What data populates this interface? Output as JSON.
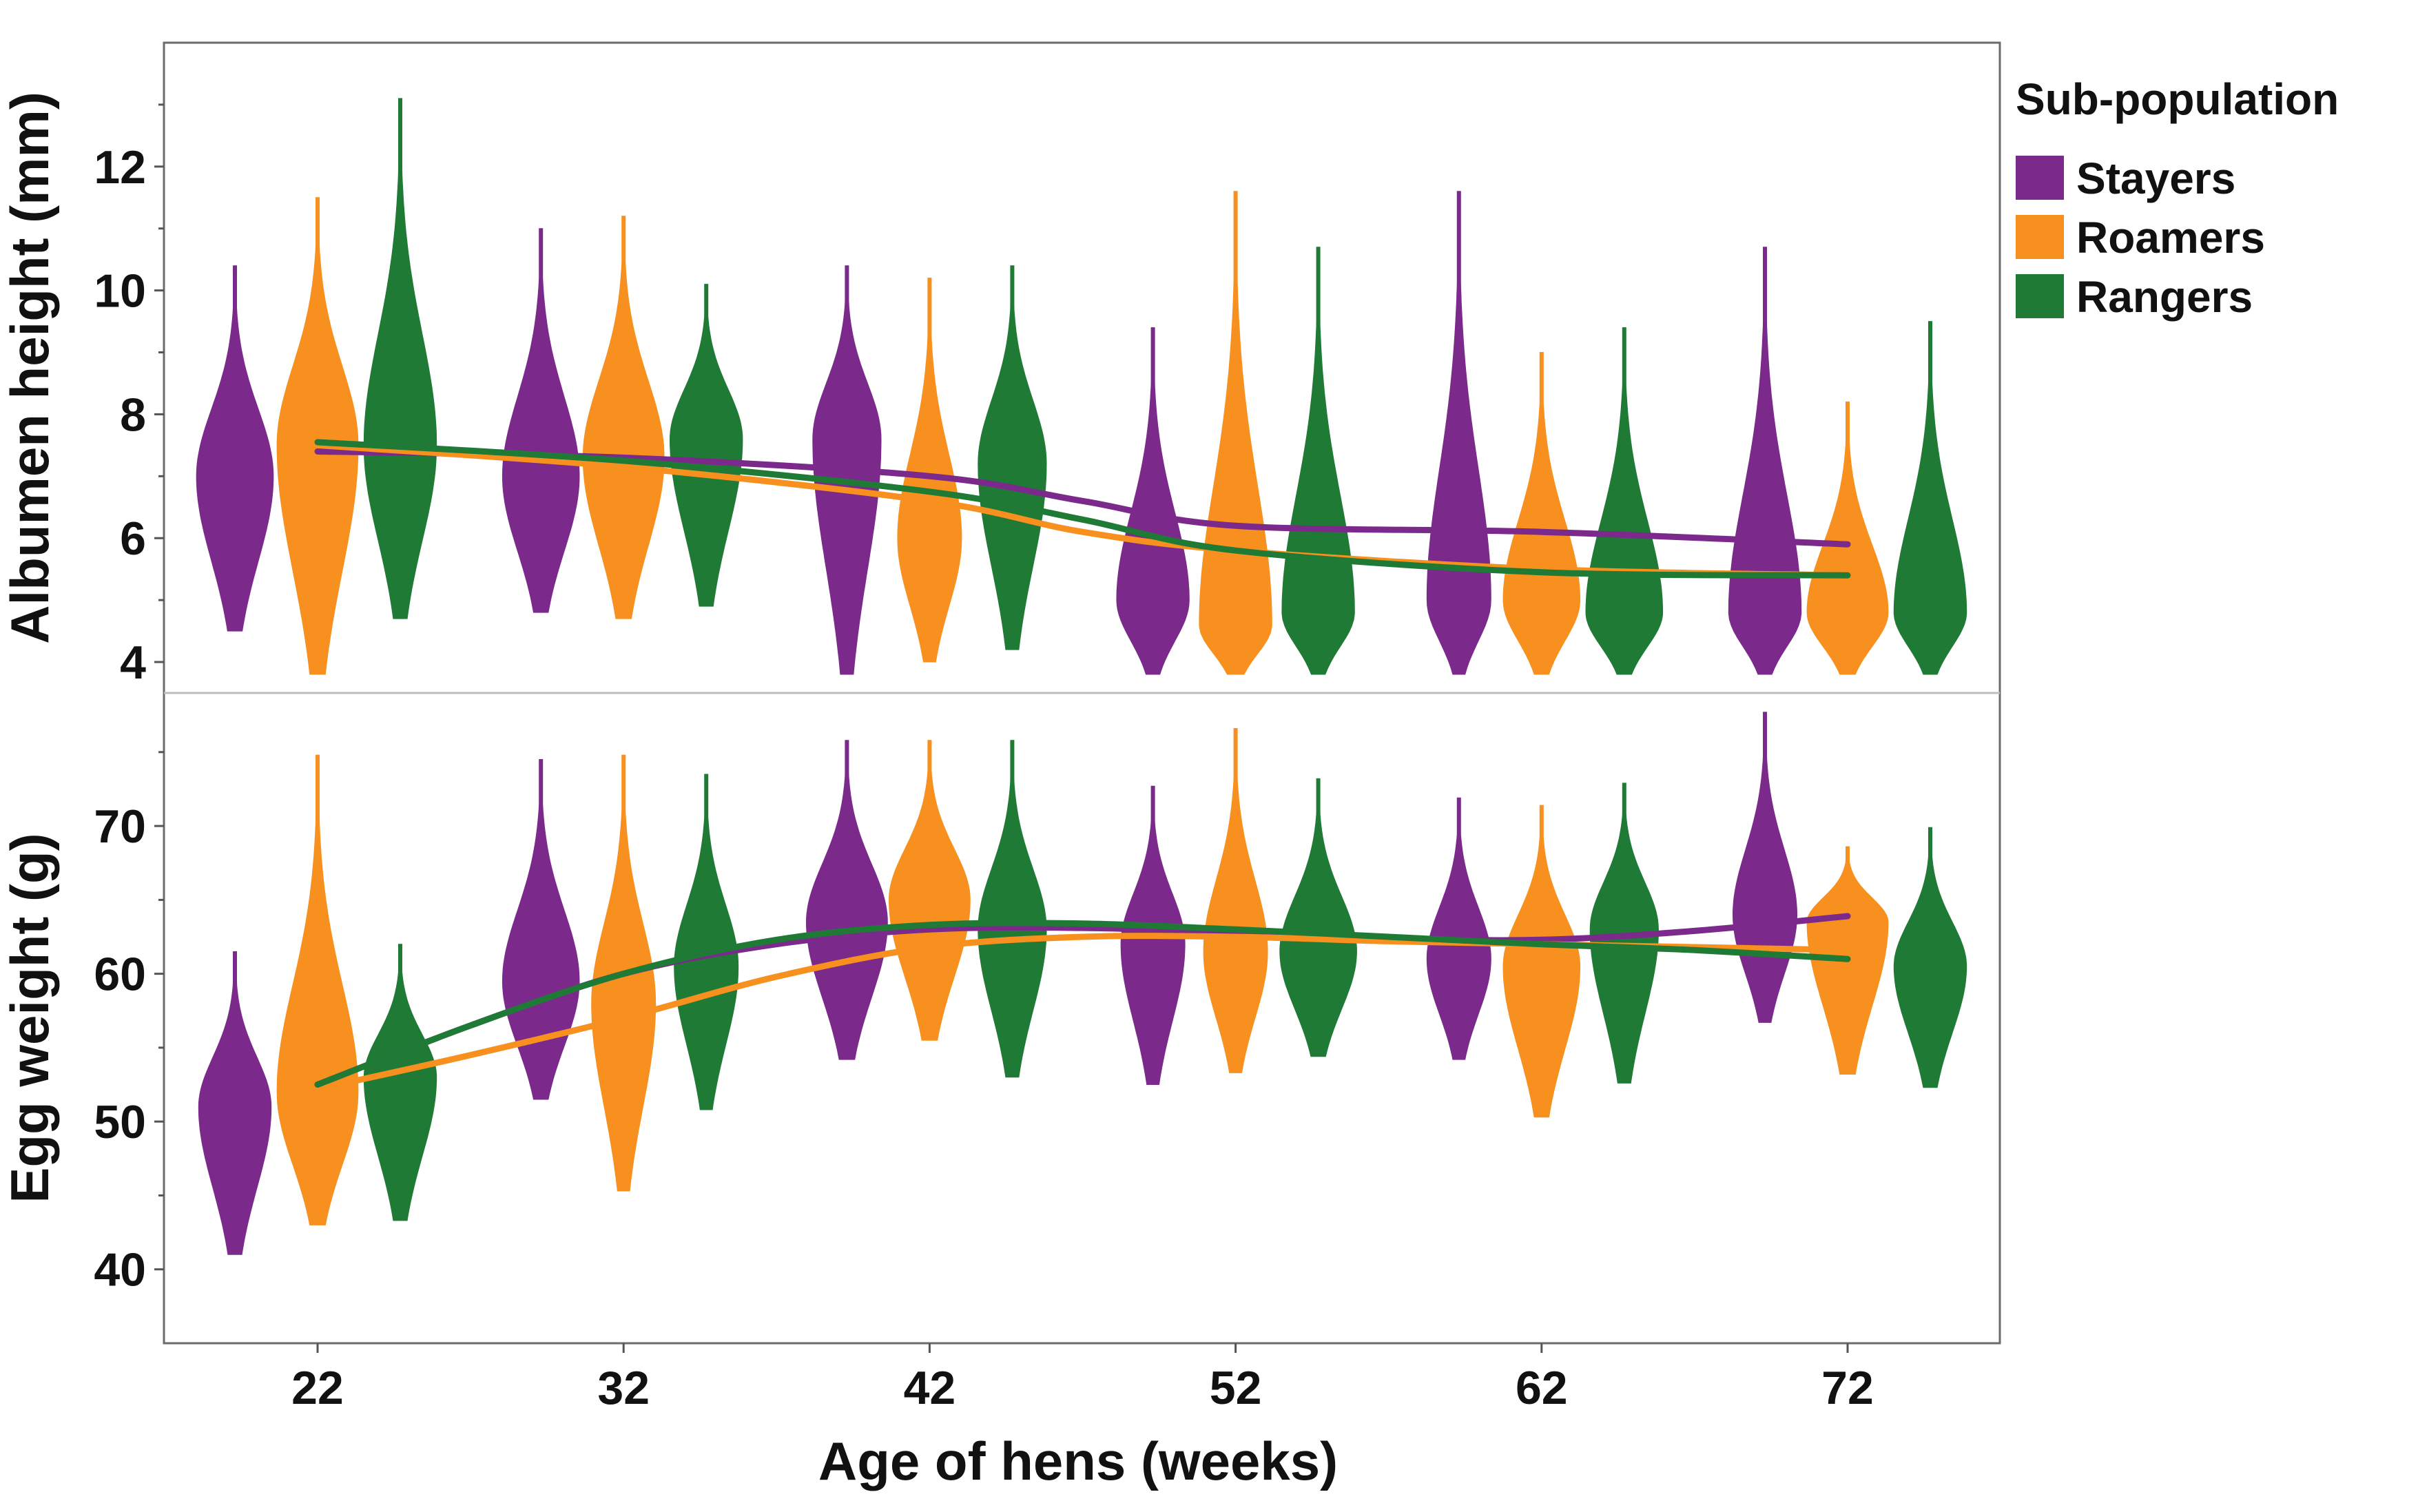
{
  "chart_data": {
    "type": "violin",
    "x": [
      22,
      32,
      42,
      52,
      62,
      72
    ],
    "xlabel": "Age of hens (weeks)",
    "legend_title": "Sub-population",
    "legend_position": "right",
    "series": [
      {
        "name": "Stayers",
        "color": "#7b2a8c"
      },
      {
        "name": "Roamers",
        "color": "#f7901e"
      },
      {
        "name": "Rangers",
        "color": "#1f7a35"
      }
    ],
    "panels": [
      {
        "id": "albumen",
        "ylabel": "Albumen height (mm)",
        "ylim": [
          3.5,
          14.0
        ],
        "yticks": [
          4,
          6,
          8,
          10,
          12
        ],
        "violins": [
          {
            "x": 22,
            "series": "Stayers",
            "min": 4.5,
            "max": 10.4,
            "mode": 7.0,
            "width": 0.9
          },
          {
            "x": 22,
            "series": "Roamers",
            "min": 3.8,
            "max": 11.5,
            "mode": 7.5,
            "width": 0.95
          },
          {
            "x": 22,
            "series": "Rangers",
            "min": 4.7,
            "max": 13.1,
            "mode": 7.5,
            "width": 0.85
          },
          {
            "x": 32,
            "series": "Stayers",
            "min": 4.8,
            "max": 11.0,
            "mode": 7.0,
            "width": 0.9
          },
          {
            "x": 32,
            "series": "Roamers",
            "min": 4.7,
            "max": 11.2,
            "mode": 7.3,
            "width": 0.95
          },
          {
            "x": 32,
            "series": "Rangers",
            "min": 4.9,
            "max": 10.1,
            "mode": 7.6,
            "width": 0.85
          },
          {
            "x": 42,
            "series": "Stayers",
            "min": 3.8,
            "max": 10.4,
            "mode": 7.6,
            "width": 0.8
          },
          {
            "x": 42,
            "series": "Roamers",
            "min": 4.0,
            "max": 10.2,
            "mode": 6.0,
            "width": 0.75
          },
          {
            "x": 42,
            "series": "Rangers",
            "min": 4.2,
            "max": 10.4,
            "mode": 7.2,
            "width": 0.8
          },
          {
            "x": 52,
            "series": "Stayers",
            "min": 3.8,
            "max": 9.4,
            "mode": 5.0,
            "width": 0.85
          },
          {
            "x": 52,
            "series": "Roamers",
            "min": 3.8,
            "max": 11.6,
            "mode": 4.6,
            "width": 0.85
          },
          {
            "x": 52,
            "series": "Rangers",
            "min": 3.8,
            "max": 10.7,
            "mode": 4.8,
            "width": 0.85
          },
          {
            "x": 62,
            "series": "Stayers",
            "min": 3.8,
            "max": 11.6,
            "mode": 5.0,
            "width": 0.75
          },
          {
            "x": 62,
            "series": "Roamers",
            "min": 3.8,
            "max": 9.0,
            "mode": 5.0,
            "width": 0.9
          },
          {
            "x": 62,
            "series": "Rangers",
            "min": 3.8,
            "max": 9.4,
            "mode": 4.8,
            "width": 0.9
          },
          {
            "x": 72,
            "series": "Stayers",
            "min": 3.8,
            "max": 10.7,
            "mode": 4.8,
            "width": 0.85
          },
          {
            "x": 72,
            "series": "Roamers",
            "min": 3.8,
            "max": 8.2,
            "mode": 4.8,
            "width": 0.95
          },
          {
            "x": 72,
            "series": "Rangers",
            "min": 3.8,
            "max": 9.5,
            "mode": 4.8,
            "width": 0.85
          }
        ],
        "trend_lines": [
          {
            "series": "Stayers",
            "x": [
              22,
              32,
              42,
              47,
              52,
              62,
              72
            ],
            "y": [
              7.4,
              7.3,
              7.0,
              6.6,
              6.2,
              6.1,
              5.9
            ]
          },
          {
            "series": "Roamers",
            "x": [
              22,
              32,
              42,
              47,
              52,
              62,
              72
            ],
            "y": [
              7.5,
              7.15,
              6.6,
              6.1,
              5.8,
              5.5,
              5.4
            ]
          },
          {
            "series": "Rangers",
            "x": [
              22,
              32,
              42,
              47,
              52,
              62,
              72
            ],
            "y": [
              7.55,
              7.25,
              6.75,
              6.3,
              5.8,
              5.45,
              5.4
            ]
          }
        ]
      },
      {
        "id": "egg_weight",
        "ylabel": "Egg weight (g)",
        "ylim": [
          35,
          79
        ],
        "yticks": [
          40,
          50,
          60,
          70
        ],
        "violins": [
          {
            "x": 22,
            "series": "Stayers",
            "min": 41.0,
            "max": 61.5,
            "mode": 51.0,
            "width": 0.85
          },
          {
            "x": 22,
            "series": "Roamers",
            "min": 43.0,
            "max": 74.8,
            "mode": 52.0,
            "width": 0.95
          },
          {
            "x": 22,
            "series": "Rangers",
            "min": 43.3,
            "max": 62.0,
            "mode": 53.0,
            "width": 0.85
          },
          {
            "x": 32,
            "series": "Stayers",
            "min": 51.5,
            "max": 74.5,
            "mode": 59.5,
            "width": 0.9
          },
          {
            "x": 32,
            "series": "Roamers",
            "min": 45.3,
            "max": 74.8,
            "mode": 58.0,
            "width": 0.75
          },
          {
            "x": 32,
            "series": "Rangers",
            "min": 50.8,
            "max": 73.5,
            "mode": 60.5,
            "width": 0.75
          },
          {
            "x": 42,
            "series": "Stayers",
            "min": 54.2,
            "max": 75.8,
            "mode": 63.5,
            "width": 0.95
          },
          {
            "x": 42,
            "series": "Roamers",
            "min": 55.5,
            "max": 75.8,
            "mode": 65.0,
            "width": 0.95
          },
          {
            "x": 42,
            "series": "Rangers",
            "min": 53.0,
            "max": 75.8,
            "mode": 63.0,
            "width": 0.8
          },
          {
            "x": 52,
            "series": "Stayers",
            "min": 52.5,
            "max": 72.7,
            "mode": 62.0,
            "width": 0.75
          },
          {
            "x": 52,
            "series": "Roamers",
            "min": 53.3,
            "max": 76.6,
            "mode": 61.5,
            "width": 0.75
          },
          {
            "x": 52,
            "series": "Rangers",
            "min": 54.4,
            "max": 73.2,
            "mode": 61.5,
            "width": 0.9
          },
          {
            "x": 62,
            "series": "Stayers",
            "min": 54.2,
            "max": 71.9,
            "mode": 61.0,
            "width": 0.75
          },
          {
            "x": 62,
            "series": "Roamers",
            "min": 50.3,
            "max": 71.4,
            "mode": 60.5,
            "width": 0.9
          },
          {
            "x": 62,
            "series": "Rangers",
            "min": 52.6,
            "max": 72.9,
            "mode": 63.0,
            "width": 0.8
          },
          {
            "x": 72,
            "series": "Stayers",
            "min": 56.7,
            "max": 77.7,
            "mode": 64.0,
            "width": 0.75
          },
          {
            "x": 72,
            "series": "Roamers",
            "min": 53.2,
            "max": 68.6,
            "mode": 63.5,
            "width": 0.95
          },
          {
            "x": 72,
            "series": "Rangers",
            "min": 52.3,
            "max": 69.9,
            "mode": 60.5,
            "width": 0.85
          }
        ],
        "trend_lines": [
          {
            "series": "Stayers",
            "x": [
              22,
              27,
              32,
              37,
              42,
              47,
              52,
              57,
              62,
              67,
              72
            ],
            "y": [
              52.5,
              56.5,
              60.0,
              62.0,
              63.0,
              63.1,
              62.8,
              62.4,
              62.3,
              62.9,
              63.9
            ]
          },
          {
            "series": "Roamers",
            "x": [
              22,
              27,
              32,
              37,
              42,
              47,
              52,
              57,
              62,
              67,
              72
            ],
            "y": [
              52.2,
              54.5,
              57.0,
              59.8,
              61.8,
              62.5,
              62.5,
              62.2,
              62.0,
              61.8,
              61.6
            ]
          },
          {
            "series": "Rangers",
            "x": [
              22,
              27,
              32,
              37,
              42,
              47,
              52,
              57,
              62,
              67,
              72
            ],
            "y": [
              52.5,
              56.5,
              60.0,
              62.3,
              63.3,
              63.4,
              63.0,
              62.5,
              62.0,
              61.6,
              61.0
            ]
          }
        ]
      }
    ]
  }
}
